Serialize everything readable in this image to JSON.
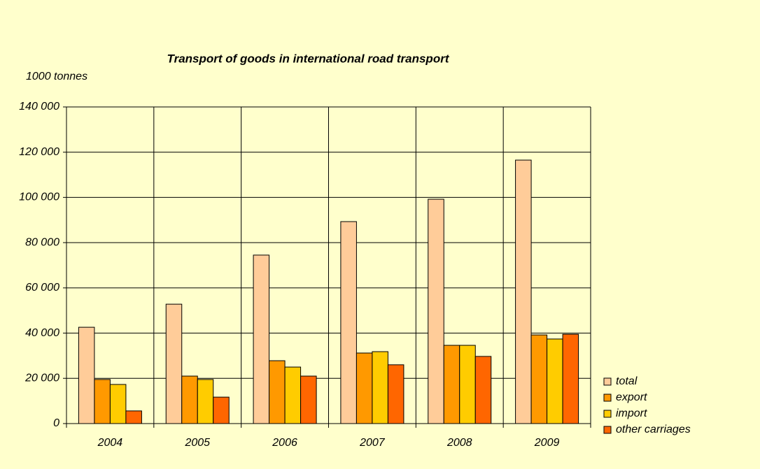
{
  "chart_data": {
    "type": "bar",
    "title": "Transport of goods in international road transport",
    "y_label": "1000 tonnes",
    "categories": [
      "2004",
      "2005",
      "2006",
      "2007",
      "2008",
      "2009"
    ],
    "series": [
      {
        "name": "total",
        "color": "#ffcc99",
        "values": [
          42600,
          52800,
          74500,
          89300,
          99200,
          116500
        ]
      },
      {
        "name": "export",
        "color": "#ff9900",
        "values": [
          19500,
          21000,
          27800,
          31200,
          34600,
          39200
        ]
      },
      {
        "name": "import",
        "color": "#ffcc00",
        "values": [
          17300,
          19500,
          25000,
          31800,
          34600,
          37400
        ]
      },
      {
        "name": "other carriages",
        "color": "#ff6600",
        "values": [
          5600,
          11700,
          21000,
          26000,
          29700,
          39500
        ]
      }
    ],
    "ylim": [
      0,
      140000
    ],
    "yticks": [
      0,
      {
        "value": 20000,
        "label": "20 000"
      },
      {
        "value": 40000,
        "label": "40 000"
      },
      {
        "value": 60000,
        "label": "60 000"
      },
      {
        "value": 80000,
        "label": "80 000"
      },
      {
        "value": 100000,
        "label": "100 000"
      },
      {
        "value": 120000,
        "label": "120 000"
      },
      {
        "value": 140000,
        "label": "140 000"
      }
    ],
    "grid": true,
    "legend": "right"
  }
}
